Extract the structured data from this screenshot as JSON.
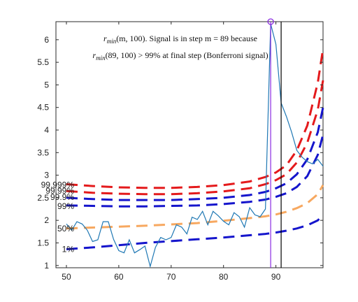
{
  "chart_data": {
    "type": "line",
    "title": "",
    "xlabel": "",
    "ylabel": "",
    "xlim": [
      48,
      99
    ],
    "ylim": [
      0.95,
      6.4
    ],
    "x_ticks": [
      50,
      60,
      70,
      80,
      90
    ],
    "y_ticks": [
      1,
      1.5,
      2,
      2.5,
      3,
      3.5,
      4,
      4.5,
      5,
      5.5,
      6
    ],
    "x_tick_labels": [
      "50",
      "60",
      "70",
      "80",
      "90"
    ],
    "y_tick_labels": [
      "1",
      "1.5",
      "2",
      "2.5",
      "3",
      "3.5",
      "4",
      "4.5",
      "5",
      "5.5",
      "6"
    ],
    "grid": false,
    "annotation": {
      "line1_pre": "r",
      "line1_sub": "min",
      "line1_post": "(m, 100). Signal is in step m = 89 because",
      "line2_pre": "r",
      "line2_sub": "min",
      "line2_post": "(89, 100) > 99% at final step (Bonferroni signal)"
    },
    "bands": [
      {
        "label": "99.999%",
        "color": "#e41a1c",
        "x": [
          50,
          55,
          60,
          65,
          70,
          75,
          80,
          85,
          88,
          90,
          92,
          94,
          96,
          98,
          99
        ],
        "y": [
          2.8,
          2.76,
          2.73,
          2.72,
          2.72,
          2.74,
          2.78,
          2.86,
          2.96,
          3.06,
          3.22,
          3.55,
          4.1,
          5.05,
          5.8
        ]
      },
      {
        "label": "99.99%",
        "color": "#e41a1c",
        "x": [
          50,
          55,
          60,
          65,
          70,
          75,
          80,
          85,
          88,
          90,
          92,
          94,
          96,
          98,
          99
        ],
        "y": [
          2.65,
          2.61,
          2.59,
          2.58,
          2.58,
          2.6,
          2.64,
          2.71,
          2.8,
          2.89,
          3.02,
          3.28,
          3.72,
          4.45,
          5.1
        ]
      },
      {
        "label": "99.9%",
        "color": "#1515cc",
        "x": [
          50,
          55,
          60,
          65,
          70,
          75,
          80,
          85,
          88,
          90,
          92,
          94,
          96,
          98,
          99
        ],
        "y": [
          2.5,
          2.47,
          2.45,
          2.45,
          2.45,
          2.47,
          2.5,
          2.56,
          2.63,
          2.71,
          2.82,
          3.02,
          3.35,
          3.95,
          4.5
        ]
      },
      {
        "label": "99%",
        "color": "#1515cc",
        "x": [
          50,
          55,
          60,
          65,
          70,
          75,
          80,
          85,
          88,
          90,
          92,
          94,
          96,
          98,
          99
        ],
        "y": [
          2.33,
          2.32,
          2.31,
          2.31,
          2.32,
          2.33,
          2.36,
          2.41,
          2.46,
          2.52,
          2.6,
          2.74,
          2.98,
          3.45,
          3.9
        ]
      },
      {
        "label": "50%",
        "color": "#f7a860",
        "x": [
          50,
          55,
          60,
          65,
          70,
          75,
          80,
          85,
          88,
          90,
          92,
          94,
          96,
          98,
          99
        ],
        "y": [
          1.82,
          1.84,
          1.86,
          1.88,
          1.91,
          1.94,
          1.99,
          2.05,
          2.09,
          2.13,
          2.19,
          2.27,
          2.38,
          2.58,
          2.78
        ]
      },
      {
        "label": "1%",
        "color": "#1515cc",
        "x": [
          50,
          55,
          60,
          65,
          70,
          75,
          80,
          85,
          88,
          90,
          92,
          94,
          96,
          98,
          99
        ],
        "y": [
          1.36,
          1.4,
          1.45,
          1.5,
          1.54,
          1.58,
          1.62,
          1.67,
          1.7,
          1.73,
          1.77,
          1.82,
          1.89,
          2.0,
          2.12
        ]
      }
    ],
    "series": [
      {
        "color": "#1f78b4",
        "x": [
          50,
          51,
          52,
          53,
          54,
          55,
          56,
          57,
          58,
          59,
          60,
          61,
          62,
          63,
          64,
          65,
          66,
          67,
          68,
          69,
          70,
          71,
          72,
          73,
          74,
          75,
          76,
          77,
          78,
          79,
          80,
          81,
          82,
          83,
          84,
          85,
          86,
          87,
          88,
          89,
          90,
          91,
          92,
          93,
          94,
          95,
          96,
          97,
          98,
          99
        ],
        "y": [
          1.92,
          1.78,
          1.97,
          1.92,
          1.78,
          1.53,
          1.57,
          1.97,
          1.97,
          1.58,
          1.33,
          1.28,
          1.57,
          1.28,
          1.35,
          1.43,
          0.98,
          1.4,
          1.62,
          1.57,
          1.62,
          1.9,
          1.85,
          1.7,
          2.07,
          2.02,
          2.2,
          1.9,
          2.2,
          2.1,
          1.98,
          1.9,
          2.17,
          2.08,
          1.85,
          2.28,
          2.12,
          2.08,
          2.25,
          6.35,
          5.9,
          4.6,
          4.3,
          3.95,
          3.55,
          3.4,
          3.3,
          3.25,
          3.35,
          3.2
        ]
      }
    ],
    "marker": {
      "x": 89,
      "y": 6.4,
      "color": "#8a2be2"
    },
    "vlines": [
      {
        "x": 89,
        "color": "#8a2be2"
      },
      {
        "x": 91,
        "color": "#000000"
      }
    ]
  }
}
